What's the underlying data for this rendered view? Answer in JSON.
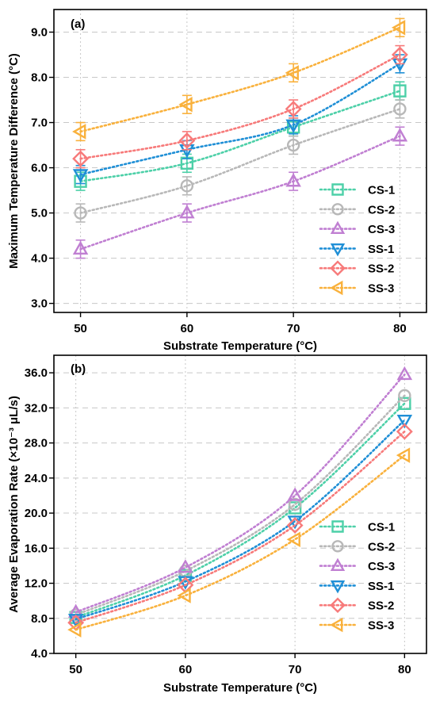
{
  "chart_data": [
    {
      "type": "line",
      "panel_label": "(a)",
      "xlabel": "Substrate Temperature (°C)",
      "ylabel": "Maximum Temperature Difference (°C)",
      "x": [
        50,
        60,
        70,
        80
      ],
      "xlim": [
        47.5,
        82.5
      ],
      "ylim": [
        2.8,
        9.5
      ],
      "x_ticks": [
        "50",
        "60",
        "70",
        "80"
      ],
      "y_ticks": [
        "3.0",
        "4.0",
        "5.0",
        "6.0",
        "7.0",
        "8.0",
        "9.0"
      ],
      "grid": true,
      "legend_position": "lower-right",
      "error_bar": 0.2,
      "series": [
        {
          "name": "CS-1",
          "values": [
            5.7,
            6.1,
            6.9,
            7.7
          ],
          "color": "#4dd0a8",
          "marker": "square"
        },
        {
          "name": "CS-2",
          "values": [
            5.0,
            5.6,
            6.5,
            7.3
          ],
          "color": "#b8b8b8",
          "marker": "circle"
        },
        {
          "name": "CS-3",
          "values": [
            4.2,
            5.0,
            5.7,
            6.7
          ],
          "color": "#c07fd2",
          "marker": "triangle-up"
        },
        {
          "name": "SS-1",
          "values": [
            5.85,
            6.4,
            6.95,
            8.3
          ],
          "color": "#1f8fd6",
          "marker": "triangle-down"
        },
        {
          "name": "SS-2",
          "values": [
            6.2,
            6.6,
            7.3,
            8.5
          ],
          "color": "#f77a7a",
          "marker": "diamond"
        },
        {
          "name": "SS-3",
          "values": [
            6.8,
            7.4,
            8.1,
            9.1
          ],
          "color": "#f9b13c",
          "marker": "triangle-left"
        }
      ]
    },
    {
      "type": "line",
      "panel_label": "(b)",
      "xlabel": "Substrate Temperature (°C)",
      "ylabel": "Average Evaporation Rate (×10⁻³ μL/s)",
      "x": [
        50,
        60,
        70,
        80
      ],
      "xlim": [
        48,
        82
      ],
      "ylim": [
        4.0,
        38.0
      ],
      "x_ticks": [
        "50",
        "60",
        "70",
        "80"
      ],
      "y_ticks": [
        "4.0",
        "8.0",
        "12.0",
        "16.0",
        "20.0",
        "24.0",
        "28.0",
        "32.0",
        "36.0"
      ],
      "grid": true,
      "legend_position": "right",
      "series": [
        {
          "name": "CS-1",
          "values": [
            8.1,
            12.9,
            20.6,
            32.5
          ],
          "color": "#4dd0a8",
          "marker": "square"
        },
        {
          "name": "CS-2",
          "values": [
            8.4,
            13.4,
            21.0,
            33.4
          ],
          "color": "#b8b8b8",
          "marker": "circle"
        },
        {
          "name": "CS-3",
          "values": [
            8.7,
            13.8,
            22.0,
            35.8
          ],
          "color": "#c07fd2",
          "marker": "triangle-up"
        },
        {
          "name": "SS-1",
          "values": [
            7.9,
            12.2,
            19.1,
            30.6
          ],
          "color": "#1f8fd6",
          "marker": "triangle-down"
        },
        {
          "name": "SS-2",
          "values": [
            7.5,
            11.8,
            18.6,
            29.3
          ],
          "color": "#f77a7a",
          "marker": "diamond"
        },
        {
          "name": "SS-3",
          "values": [
            6.7,
            10.6,
            17.0,
            26.6
          ],
          "color": "#f9b13c",
          "marker": "triangle-left"
        }
      ]
    }
  ]
}
